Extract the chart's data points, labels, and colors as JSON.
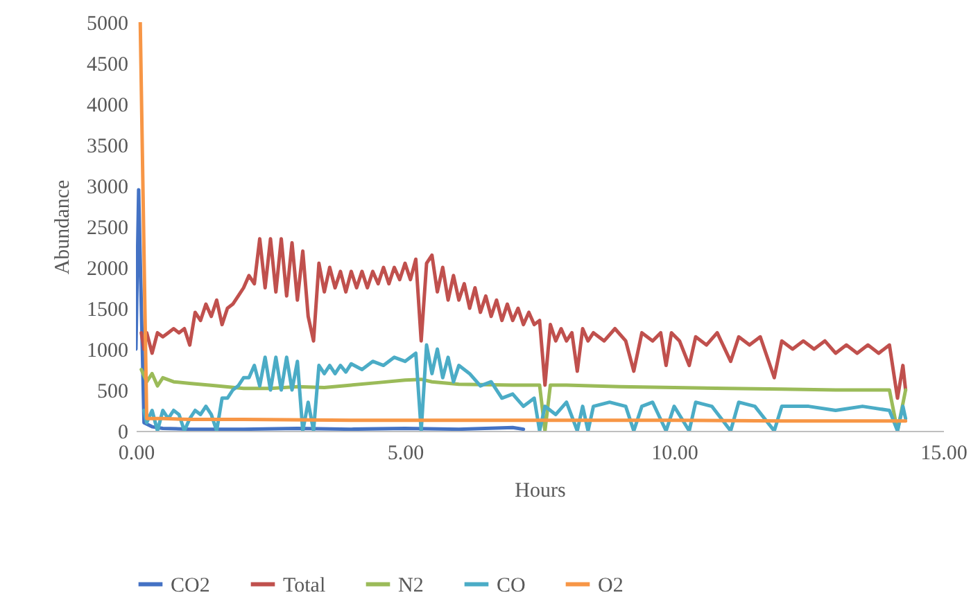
{
  "chart_data": {
    "type": "line",
    "xlabel": "Hours",
    "ylabel": "Abundance",
    "xlim": [
      0,
      15
    ],
    "ylim": [
      0,
      5000
    ],
    "xticks": [
      {
        "value": 0,
        "label": "0.00"
      },
      {
        "value": 5,
        "label": "5.00"
      },
      {
        "value": 10,
        "label": "10.00"
      },
      {
        "value": 15,
        "label": "15.00"
      }
    ],
    "yticks": [
      0,
      500,
      1000,
      1500,
      2000,
      2500,
      3000,
      3500,
      4000,
      4500,
      5000
    ],
    "grid": false,
    "legend": "bottom",
    "marker": "none",
    "line_style": "solid",
    "series": [
      {
        "name": "CO2",
        "color": "#4472c4",
        "x": [
          0,
          0.05,
          0.15,
          0.3,
          0.5,
          1,
          2,
          3,
          4,
          5,
          6,
          7,
          7.2
        ],
        "values": [
          1000,
          2950,
          100,
          50,
          30,
          20,
          20,
          30,
          20,
          30,
          20,
          40,
          20
        ]
      },
      {
        "name": "Total",
        "color": "#c0504d",
        "x": [
          0.1,
          0.15,
          0.2,
          0.3,
          0.4,
          0.5,
          0.6,
          0.7,
          0.8,
          0.9,
          1.0,
          1.1,
          1.2,
          1.3,
          1.4,
          1.5,
          1.6,
          1.7,
          1.8,
          1.9,
          2.0,
          2.1,
          2.2,
          2.3,
          2.4,
          2.5,
          2.6,
          2.7,
          2.8,
          2.9,
          3.0,
          3.1,
          3.2,
          3.3,
          3.4,
          3.5,
          3.6,
          3.7,
          3.8,
          3.9,
          4.0,
          4.1,
          4.2,
          4.3,
          4.4,
          4.5,
          4.6,
          4.7,
          4.8,
          4.9,
          5.0,
          5.1,
          5.2,
          5.3,
          5.4,
          5.5,
          5.6,
          5.7,
          5.8,
          5.9,
          6.0,
          6.1,
          6.2,
          6.3,
          6.4,
          6.5,
          6.6,
          6.7,
          6.8,
          6.9,
          7.0,
          7.1,
          7.2,
          7.3,
          7.4,
          7.5,
          7.6,
          7.7,
          7.8,
          7.9,
          8.0,
          8.1,
          8.2,
          8.3,
          8.4,
          8.5,
          8.7,
          8.9,
          9.1,
          9.25,
          9.4,
          9.6,
          9.75,
          9.85,
          9.95,
          10.1,
          10.28,
          10.4,
          10.6,
          10.8,
          11.05,
          11.2,
          11.4,
          11.6,
          11.86,
          12.0,
          12.2,
          12.4,
          12.6,
          12.8,
          13.0,
          13.2,
          13.4,
          13.6,
          13.8,
          14.0,
          14.15,
          14.25,
          14.3
        ],
        "values": [
          1200,
          1000,
          1200,
          950,
          1200,
          1150,
          1200,
          1250,
          1200,
          1250,
          1050,
          1450,
          1350,
          1550,
          1400,
          1600,
          1300,
          1500,
          1550,
          1650,
          1750,
          1900,
          1800,
          2350,
          1750,
          2350,
          1700,
          2350,
          1650,
          2300,
          1600,
          2200,
          1400,
          1100,
          2050,
          1700,
          2000,
          1750,
          1950,
          1700,
          1950,
          1750,
          1950,
          1750,
          1950,
          1800,
          2000,
          1800,
          2000,
          1850,
          2050,
          1850,
          2100,
          1100,
          2050,
          2150,
          1700,
          2000,
          1600,
          1900,
          1600,
          1800,
          1500,
          1750,
          1450,
          1650,
          1400,
          1600,
          1350,
          1550,
          1350,
          1500,
          1300,
          1450,
          1300,
          1350,
          560,
          1300,
          1100,
          1250,
          1100,
          1200,
          730,
          1250,
          1100,
          1200,
          1100,
          1250,
          1100,
          730,
          1200,
          1100,
          1200,
          800,
          1200,
          1100,
          800,
          1150,
          1050,
          1200,
          850,
          1150,
          1050,
          1150,
          650,
          1100,
          1000,
          1100,
          1000,
          1100,
          950,
          1050,
          950,
          1050,
          950,
          1050,
          400,
          800,
          500
        ]
      },
      {
        "name": "N2",
        "color": "#9bbb59",
        "x": [
          0.1,
          0.2,
          0.3,
          0.4,
          0.5,
          0.7,
          1.0,
          1.5,
          2.0,
          2.5,
          3.0,
          3.5,
          4.0,
          4.5,
          5.0,
          5.3,
          5.5,
          6.0,
          7.0,
          7.5,
          7.6,
          7.7,
          8.0,
          9.0,
          10.0,
          11.0,
          12.0,
          13.0,
          14.0,
          14.15,
          14.3
        ],
        "values": [
          750,
          600,
          700,
          550,
          650,
          600,
          580,
          550,
          520,
          520,
          540,
          530,
          560,
          590,
          620,
          630,
          600,
          570,
          560,
          560,
          0,
          560,
          560,
          540,
          530,
          520,
          510,
          500,
          500,
          0,
          500
        ]
      },
      {
        "name": "CO",
        "color": "#4bacc6",
        "x": [
          0.15,
          0.2,
          0.3,
          0.4,
          0.5,
          0.6,
          0.7,
          0.8,
          0.9,
          1.0,
          1.1,
          1.2,
          1.3,
          1.4,
          1.5,
          1.6,
          1.7,
          1.8,
          1.9,
          2.0,
          2.1,
          2.2,
          2.3,
          2.4,
          2.5,
          2.6,
          2.7,
          2.8,
          2.9,
          3.0,
          3.1,
          3.2,
          3.3,
          3.4,
          3.5,
          3.6,
          3.7,
          3.8,
          3.9,
          4.0,
          4.2,
          4.4,
          4.6,
          4.8,
          5.0,
          5.2,
          5.3,
          5.4,
          5.5,
          5.6,
          5.7,
          5.8,
          5.9,
          6.0,
          6.2,
          6.4,
          6.6,
          6.8,
          7.0,
          7.2,
          7.4,
          7.5,
          7.6,
          7.8,
          8.0,
          8.2,
          8.3,
          8.4,
          8.5,
          8.8,
          9.1,
          9.25,
          9.4,
          9.6,
          9.85,
          10.0,
          10.28,
          10.4,
          10.7,
          11.05,
          11.2,
          11.5,
          11.86,
          12.0,
          12.5,
          13.0,
          13.5,
          14.0,
          14.15,
          14.25,
          14.3
        ],
        "values": [
          250,
          100,
          250,
          0,
          250,
          150,
          250,
          200,
          0,
          150,
          250,
          200,
          300,
          200,
          0,
          400,
          400,
          500,
          550,
          650,
          650,
          800,
          550,
          900,
          500,
          900,
          500,
          900,
          500,
          850,
          0,
          350,
          0,
          800,
          700,
          800,
          700,
          800,
          720,
          820,
          750,
          850,
          800,
          900,
          850,
          950,
          0,
          1050,
          700,
          1000,
          650,
          900,
          600,
          800,
          700,
          550,
          600,
          400,
          450,
          300,
          400,
          0,
          300,
          200,
          350,
          0,
          300,
          0,
          300,
          350,
          300,
          0,
          300,
          350,
          0,
          300,
          0,
          350,
          300,
          0,
          350,
          300,
          0,
          300,
          300,
          250,
          300,
          250,
          0,
          300,
          150
        ]
      },
      {
        "name": "O2",
        "color": "#f79646",
        "x": [
          0.08,
          0.2,
          0.5,
          1,
          2,
          4,
          6,
          8,
          10,
          12,
          14.3
        ],
        "values": [
          5000,
          150,
          150,
          140,
          140,
          130,
          130,
          130,
          130,
          120,
          120
        ]
      }
    ]
  }
}
